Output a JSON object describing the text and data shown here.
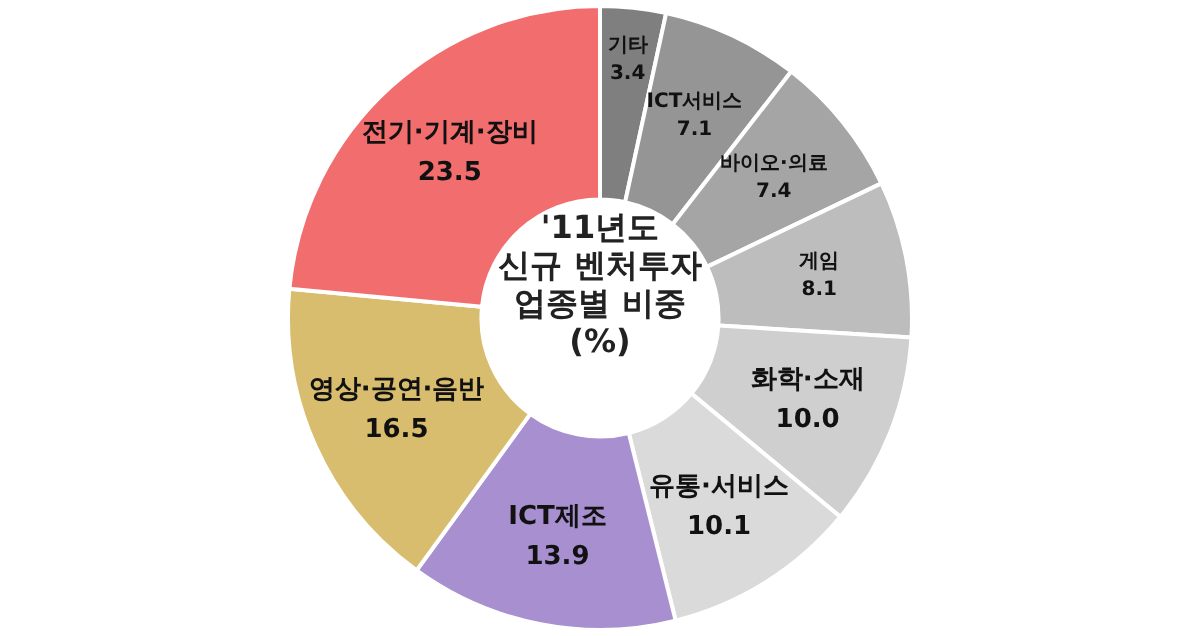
{
  "chart_data": {
    "type": "donut",
    "title": "'11년도\n신규 벤처투자\n업종별 비중\n(%)",
    "categories": [
      "기타",
      "ICT서비스",
      "바이오·의료",
      "게임",
      "화학·소재",
      "유통·서비스",
      "ICT제조",
      "영상·공연·음반",
      "전기·기계·장비"
    ],
    "values": [
      3.4,
      7.1,
      7.4,
      8.1,
      10.0,
      10.1,
      13.9,
      16.5,
      23.5
    ],
    "colors": [
      "#7f7f7f",
      "#959595",
      "#a5a5a5",
      "#bdbdbd",
      "#cfcfcf",
      "#dadada",
      "#a88fd0",
      "#d8bd6e",
      "#f26d6d"
    ],
    "value_labels": [
      "3.4",
      "7.1",
      "7.4",
      "8.1",
      "10.0",
      "10.1",
      "13.9",
      "16.5",
      "23.5"
    ],
    "legend": false
  }
}
